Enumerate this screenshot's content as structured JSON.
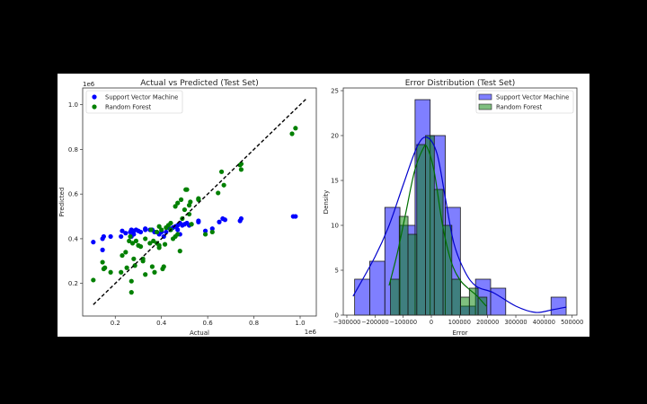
{
  "chart_data": [
    {
      "type": "scatter",
      "title": "Actual vs Predicted (Test Set)",
      "xlabel": "Actual",
      "ylabel": "Predicted",
      "x_offset_label": "1e6",
      "y_offset_label": "1e6",
      "xlim": [
        0.059,
        1.07
      ],
      "ylim": [
        0.054,
        1.075
      ],
      "xticks": [
        0.2,
        0.4,
        0.6,
        0.8,
        1.0
      ],
      "xtick_labels": [
        "0.2",
        "0.4",
        "0.6",
        "0.8",
        "1.0"
      ],
      "yticks": [
        0.2,
        0.4,
        0.6,
        0.8,
        1.0
      ],
      "ytick_labels": [
        "0.2",
        "0.4",
        "0.6",
        "0.8",
        "1.0"
      ],
      "grid": false,
      "legend_position": "top-left",
      "reference_line": {
        "style": "dashed",
        "color": "#000000",
        "from": [
          0.105,
          0.105
        ],
        "to": [
          1.025,
          1.025
        ]
      },
      "series": [
        {
          "name": "Support Vector Machine",
          "color": "#0000ff",
          "points": [
            [
              0.105,
              0.385
            ],
            [
              0.145,
              0.35
            ],
            [
              0.145,
              0.4
            ],
            [
              0.15,
              0.41
            ],
            [
              0.18,
              0.41
            ],
            [
              0.225,
              0.41
            ],
            [
              0.23,
              0.435
            ],
            [
              0.245,
              0.425
            ],
            [
              0.265,
              0.43
            ],
            [
              0.27,
              0.44
            ],
            [
              0.28,
              0.435
            ],
            [
              0.29,
              0.44
            ],
            [
              0.3,
              0.435
            ],
            [
              0.27,
              0.41
            ],
            [
              0.28,
              0.42
            ],
            [
              0.31,
              0.43
            ],
            [
              0.33,
              0.445
            ],
            [
              0.35,
              0.44
            ],
            [
              0.37,
              0.43
            ],
            [
              0.39,
              0.42
            ],
            [
              0.41,
              0.41
            ],
            [
              0.42,
              0.43
            ],
            [
              0.44,
              0.44
            ],
            [
              0.45,
              0.45
            ],
            [
              0.46,
              0.455
            ],
            [
              0.47,
              0.46
            ],
            [
              0.48,
              0.47
            ],
            [
              0.49,
              0.46
            ],
            [
              0.5,
              0.465
            ],
            [
              0.51,
              0.47
            ],
            [
              0.52,
              0.46
            ],
            [
              0.47,
              0.44
            ],
            [
              0.48,
              0.42
            ],
            [
              0.56,
              0.475
            ],
            [
              0.56,
              0.48
            ],
            [
              0.59,
              0.435
            ],
            [
              0.62,
              0.445
            ],
            [
              0.65,
              0.475
            ],
            [
              0.665,
              0.49
            ],
            [
              0.675,
              0.485
            ],
            [
              0.74,
              0.48
            ],
            [
              0.745,
              0.49
            ],
            [
              0.97,
              0.5
            ],
            [
              0.98,
              0.5
            ],
            [
              0.33,
              0.44
            ],
            [
              0.36,
              0.44
            ],
            [
              0.4,
              0.43
            ],
            [
              0.43,
              0.45
            ]
          ]
        },
        {
          "name": "Random Forest",
          "color": "#008000",
          "points": [
            [
              0.105,
              0.215
            ],
            [
              0.145,
              0.295
            ],
            [
              0.15,
              0.265
            ],
            [
              0.155,
              0.27
            ],
            [
              0.18,
              0.25
            ],
            [
              0.225,
              0.25
            ],
            [
              0.23,
              0.325
            ],
            [
              0.245,
              0.34
            ],
            [
              0.25,
              0.27
            ],
            [
              0.26,
              0.39
            ],
            [
              0.265,
              0.41
            ],
            [
              0.27,
              0.16
            ],
            [
              0.27,
              0.21
            ],
            [
              0.275,
              0.38
            ],
            [
              0.28,
              0.31
            ],
            [
              0.285,
              0.28
            ],
            [
              0.29,
              0.39
            ],
            [
              0.3,
              0.37
            ],
            [
              0.31,
              0.365
            ],
            [
              0.32,
              0.31
            ],
            [
              0.32,
              0.3
            ],
            [
              0.33,
              0.24
            ],
            [
              0.33,
              0.4
            ],
            [
              0.35,
              0.38
            ],
            [
              0.355,
              0.44
            ],
            [
              0.36,
              0.275
            ],
            [
              0.365,
              0.39
            ],
            [
              0.37,
              0.25
            ],
            [
              0.38,
              0.38
            ],
            [
              0.39,
              0.36
            ],
            [
              0.39,
              0.37
            ],
            [
              0.39,
              0.455
            ],
            [
              0.405,
              0.265
            ],
            [
              0.41,
              0.275
            ],
            [
              0.415,
              0.375
            ],
            [
              0.42,
              0.45
            ],
            [
              0.43,
              0.46
            ],
            [
              0.44,
              0.47
            ],
            [
              0.45,
              0.4
            ],
            [
              0.46,
              0.41
            ],
            [
              0.46,
              0.545
            ],
            [
              0.47,
              0.42
            ],
            [
              0.47,
              0.56
            ],
            [
              0.48,
              0.345
            ],
            [
              0.485,
              0.575
            ],
            [
              0.49,
              0.49
            ],
            [
              0.5,
              0.53
            ],
            [
              0.505,
              0.62
            ],
            [
              0.51,
              0.62
            ],
            [
              0.52,
              0.55
            ],
            [
              0.525,
              0.565
            ],
            [
              0.52,
              0.51
            ],
            [
              0.53,
              0.465
            ],
            [
              0.56,
              0.575
            ],
            [
              0.56,
              0.58
            ],
            [
              0.59,
              0.42
            ],
            [
              0.62,
              0.43
            ],
            [
              0.645,
              0.605
            ],
            [
              0.66,
              0.7
            ],
            [
              0.67,
              0.64
            ],
            [
              0.74,
              0.73
            ],
            [
              0.745,
              0.735
            ],
            [
              0.745,
              0.71
            ],
            [
              0.965,
              0.87
            ],
            [
              0.98,
              0.895
            ],
            [
              0.44,
              0.44
            ],
            [
              0.4,
              0.44
            ],
            [
              0.38,
              0.43
            ]
          ]
        }
      ]
    },
    {
      "type": "bar",
      "subtype": "histogram",
      "title": "Error Distribution (Test Set)",
      "xlabel": "Error",
      "ylabel": "Density",
      "xlim": [
        -312750,
        516900
      ],
      "ylim": [
        0,
        25.3
      ],
      "xticks": [
        -300000,
        -200000,
        -100000,
        0,
        100000,
        200000,
        300000,
        400000,
        500000
      ],
      "xtick_labels": [
        "−300000",
        "−200000",
        "−100000",
        "0",
        "100000",
        "200000",
        "300000",
        "400000",
        "500000"
      ],
      "yticks": [
        0,
        5,
        10,
        15,
        20,
        25
      ],
      "ytick_labels": [
        "0",
        "5",
        "10",
        "15",
        "20",
        "25"
      ],
      "grid": false,
      "legend_position": "top-right",
      "series": [
        {
          "name": "Support Vector Machine",
          "color": "#0000ff",
          "bin_start": -272400,
          "bin_width": 53650,
          "counts": [
            4,
            6,
            12,
            10,
            24,
            20,
            12,
            1,
            4,
            3,
            0,
            0,
            0,
            2
          ],
          "kde": [
            [
              -278000,
              2.1
            ],
            [
              -200000,
              6.5
            ],
            [
              -150000,
              10
            ],
            [
              -100000,
              14.5
            ],
            [
              -50000,
              18.8
            ],
            [
              -15000,
              19.8
            ],
            [
              20000,
              18
            ],
            [
              50000,
              13
            ],
            [
              80000,
              8
            ],
            [
              120000,
              4.8
            ],
            [
              160000,
              3.2
            ],
            [
              220000,
              2.5
            ],
            [
              300000,
              1
            ],
            [
              370000,
              0.3
            ],
            [
              430000,
              0.6
            ],
            [
              480000,
              0.9
            ]
          ]
        },
        {
          "name": "Random Forest",
          "color": "#008000",
          "bin_start": -145100,
          "bin_width": 31120,
          "counts": [
            4,
            11,
            9,
            19,
            20,
            14,
            10,
            4,
            2,
            3,
            2
          ],
          "kde": [
            [
              -150000,
              3.3
            ],
            [
              -120000,
              7
            ],
            [
              -90000,
              11.5
            ],
            [
              -60000,
              16
            ],
            [
              -30000,
              18.5
            ],
            [
              -15000,
              18.7
            ],
            [
              10000,
              16
            ],
            [
              40000,
              10
            ],
            [
              70000,
              6
            ],
            [
              100000,
              4
            ],
            [
              130000,
              3
            ],
            [
              160000,
              2.2
            ],
            [
              195000,
              1
            ]
          ]
        }
      ]
    }
  ]
}
